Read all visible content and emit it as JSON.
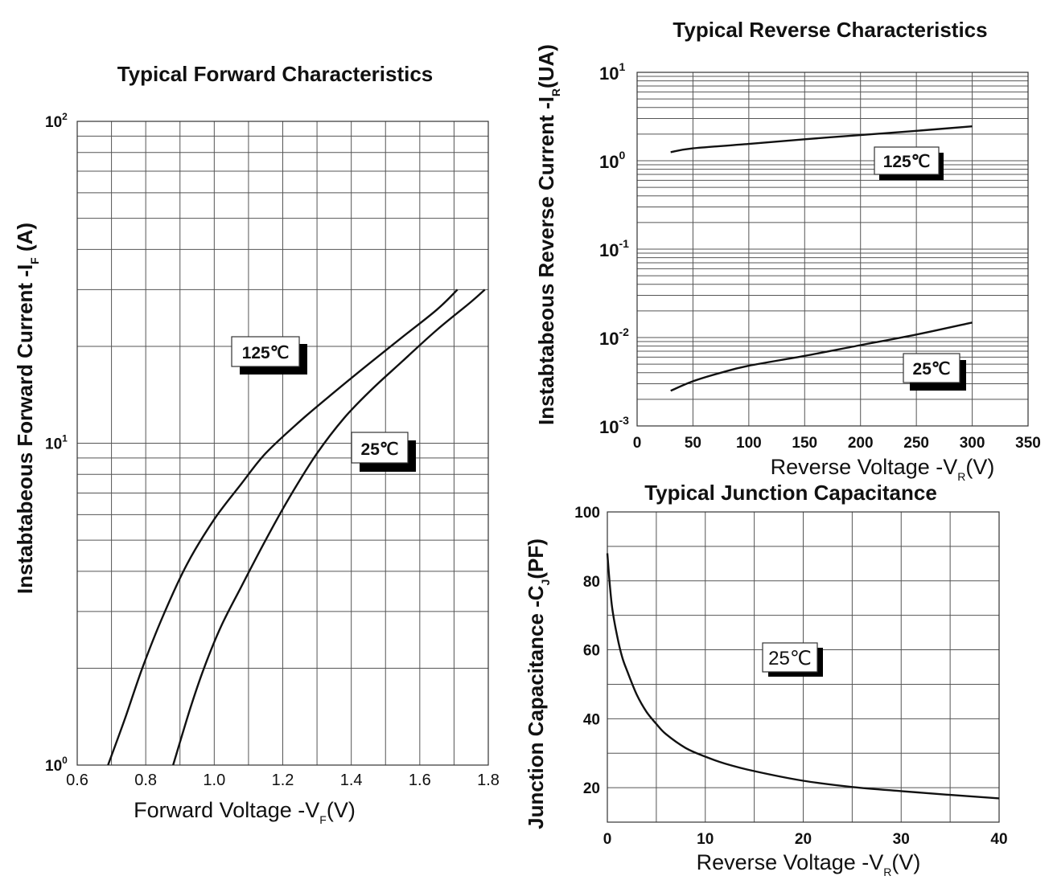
{
  "chart_data": [
    {
      "type": "line",
      "title": "Typical Forward Characteristics",
      "xlabel": "Forward Voltage -V",
      "xlabel_sub": "F",
      "xlabel_tail": "(V)",
      "ylabel": "Instabtabeous Forward Current -I",
      "ylabel_sub": "F",
      "ylabel_tail": " (A)",
      "xlim": [
        0.6,
        1.8
      ],
      "ylim": [
        1,
        100
      ],
      "yscale": "log",
      "grid": true,
      "x_ticks": [
        "0.6",
        "0.8",
        "1.0",
        "1.2",
        "1.4",
        "1.6",
        "1.8"
      ],
      "y_ticks": [
        {
          "base": "10",
          "exp": "0"
        },
        {
          "base": "10",
          "exp": "1"
        },
        {
          "base": "10",
          "exp": "2"
        }
      ],
      "series": [
        {
          "name": "125℃",
          "x": [
            0.69,
            0.74,
            0.79,
            0.85,
            0.92,
            1.0,
            1.08,
            1.15,
            1.25,
            1.35,
            1.45,
            1.55,
            1.65,
            1.71
          ],
          "y": [
            1.0,
            1.4,
            2.0,
            2.9,
            4.2,
            5.8,
            7.5,
            9.3,
            11.7,
            14.4,
            17.6,
            21.4,
            26.0,
            30.0
          ]
        },
        {
          "name": "25℃",
          "x": [
            0.88,
            0.93,
            0.97,
            1.02,
            1.08,
            1.15,
            1.22,
            1.3,
            1.38,
            1.46,
            1.55,
            1.65,
            1.75,
            1.79
          ],
          "y": [
            1.0,
            1.5,
            2.0,
            2.7,
            3.6,
            5.0,
            6.8,
            9.3,
            12.0,
            14.7,
            18.0,
            22.5,
            27.5,
            30.0
          ]
        }
      ]
    },
    {
      "type": "line",
      "title": "Typical Reverse Characteristics",
      "xlabel": "Reverse  Voltage -V",
      "xlabel_sub": "R",
      "xlabel_tail": "(V)",
      "ylabel": "Instabtabeous Reverse Current -I",
      "ylabel_sub": "R",
      "ylabel_tail": "(UA)",
      "xlim": [
        0,
        350
      ],
      "ylim": [
        0.001,
        10
      ],
      "yscale": "log",
      "grid": true,
      "x_ticks": [
        "0",
        "50",
        "100",
        "150",
        "200",
        "250",
        "300",
        "350"
      ],
      "y_ticks": [
        {
          "base": "10",
          "exp": "-3"
        },
        {
          "base": "10",
          "exp": "-2"
        },
        {
          "base": "10",
          "exp": "-1"
        },
        {
          "base": "10",
          "exp": "0"
        },
        {
          "base": "10",
          "exp": "1"
        }
      ],
      "series": [
        {
          "name": "125℃",
          "x": [
            30,
            50,
            100,
            150,
            200,
            250,
            300
          ],
          "y": [
            1.25,
            1.38,
            1.55,
            1.75,
            1.95,
            2.18,
            2.45
          ]
        },
        {
          "name": "25℃",
          "x": [
            30,
            50,
            75,
            100,
            150,
            200,
            250,
            300
          ],
          "y": [
            0.0025,
            0.0032,
            0.004,
            0.0048,
            0.0062,
            0.0082,
            0.0108,
            0.0148
          ]
        }
      ]
    },
    {
      "type": "line",
      "title": "Typical Junction Capacitance",
      "xlabel": "Reverse Voltage -V",
      "xlabel_sub": "R",
      "xlabel_tail": "(V)",
      "ylabel": "Junction Capacitance -C",
      "ylabel_sub": "J",
      "ylabel_tail": "(PF)",
      "xlim": [
        0,
        40
      ],
      "ylim": [
        10,
        100
      ],
      "grid": true,
      "x_ticks": [
        "0",
        "10",
        "20",
        "30",
        "40"
      ],
      "y_ticks": [
        "20",
        "40",
        "60",
        "80",
        "100"
      ],
      "series": [
        {
          "name": "25℃",
          "x": [
            0,
            0.25,
            0.5,
            1,
            1.5,
            2,
            3,
            4,
            5,
            6,
            8,
            10,
            12,
            15,
            20,
            25,
            30,
            35,
            40
          ],
          "y": [
            88,
            79,
            72,
            64,
            58,
            54,
            47,
            42,
            38.5,
            35.5,
            31.5,
            29,
            27,
            24.8,
            22,
            20.2,
            19,
            17.9,
            16.9
          ]
        }
      ]
    }
  ]
}
